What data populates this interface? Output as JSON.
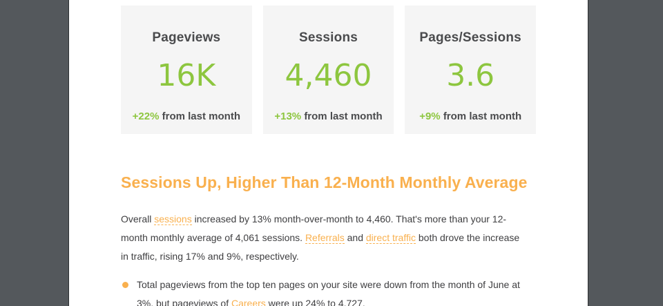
{
  "colors": {
    "frame": "#54585c",
    "frame-border": "#2d3033",
    "canvas": "#ffffff",
    "card-bg": "#f5f5f5",
    "heading-text": "#4a4b4d",
    "green": "#8dc63f",
    "orange": "#f9b04e",
    "body-text": "#3e3e40"
  },
  "stats": {
    "cards": [
      {
        "title": "Pageviews",
        "value": "16K",
        "delta": "+22%",
        "caption": "from last month"
      },
      {
        "title": "Sessions",
        "value": "4,460",
        "delta": "+13%",
        "caption": "from last month"
      },
      {
        "title": "Pages/Sessions",
        "value": "3.6",
        "delta": "+9%",
        "caption": "from last month"
      }
    ]
  },
  "article": {
    "headline": "Sessions Up, Higher Than 12-Month Monthly Average",
    "paragraph": {
      "segments": [
        {
          "type": "text",
          "text": "Overall "
        },
        {
          "type": "link",
          "text": "sessions"
        },
        {
          "type": "text",
          "text": " increased by 13% month-over-month to 4,460. That's more than your 12-month monthly average of 4,061 sessions. "
        },
        {
          "type": "link",
          "text": "Referrals"
        },
        {
          "type": "text",
          "text": " and "
        },
        {
          "type": "link",
          "text": "direct traffic"
        },
        {
          "type": "text",
          "text": " both drove the increase in traffic, rising 17% and 9%, respectively."
        }
      ]
    },
    "bullets": [
      {
        "segments": [
          {
            "type": "text",
            "text": "Total pageviews from the top ten pages on your site were down from the month of June at 3%, but pageviews of "
          },
          {
            "type": "link",
            "text": "Careers"
          },
          {
            "type": "text",
            "text": " were up 24% to 4,727."
          }
        ]
      }
    ]
  }
}
